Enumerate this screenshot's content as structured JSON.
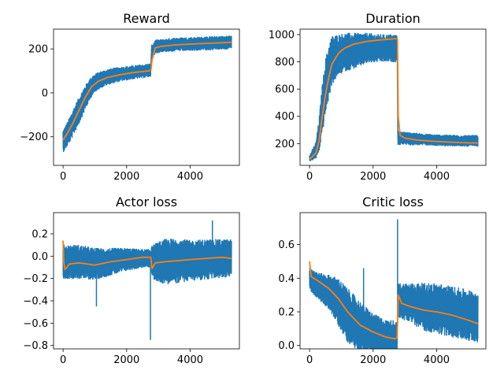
{
  "colors": {
    "raw": "#1f77b4",
    "smoothed": "#ff7f0e",
    "axes": "#000000"
  },
  "chart_data": [
    {
      "type": "line",
      "title": "Reward",
      "xlim": [
        -300,
        5550
      ],
      "ylim": [
        -330,
        290
      ],
      "xticks": [
        0,
        2000,
        4000
      ],
      "yticks": [
        -200,
        0,
        200
      ],
      "ytick_labels": [
        "−200",
        "0",
        "200"
      ],
      "series": [
        {
          "x": [
            0,
            150,
            300,
            500,
            700,
            900,
            1100,
            1400,
            1800,
            2200,
            2700,
            2760
          ],
          "y": [
            -220,
            -185,
            -140,
            -80,
            -20,
            30,
            55,
            72,
            85,
            93,
            102,
            105
          ],
          "band": [
            50,
            55,
            60,
            60,
            55,
            45,
            38,
            35,
            32,
            30,
            30,
            30
          ]
        },
        {
          "x": [
            2780,
            2900,
            3100,
            3500,
            4000,
            4500,
            5000,
            5300
          ],
          "y": [
            180,
            210,
            215,
            220,
            222,
            225,
            228,
            230
          ],
          "band": [
            35,
            30,
            28,
            30,
            30,
            30,
            30,
            30
          ]
        }
      ],
      "smooth": [
        {
          "x": [
            0,
            150,
            300,
            500,
            700,
            900,
            1100,
            1400,
            1800,
            2200,
            2700,
            2760
          ],
          "y": [
            -215,
            -180,
            -140,
            -80,
            -20,
            28,
            52,
            70,
            83,
            92,
            100,
            103
          ]
        },
        {
          "x": [
            2770,
            2800,
            2900,
            3100,
            3500,
            4000,
            4500,
            5000,
            5300
          ],
          "y": [
            105,
            150,
            205,
            212,
            218,
            222,
            225,
            228,
            230
          ]
        }
      ]
    },
    {
      "type": "line",
      "title": "Duration",
      "xlim": [
        -300,
        5550
      ],
      "ylim": [
        40,
        1040
      ],
      "xticks": [
        0,
        2000,
        4000
      ],
      "yticks": [
        200,
        400,
        600,
        800,
        1000
      ],
      "ytick_labels": [
        "200",
        "400",
        "600",
        "800",
        "1000"
      ],
      "series": [
        {
          "x": [
            0,
            200,
            300,
            400,
            500,
            600,
            700,
            900,
            1100,
            1400,
            1800,
            2200,
            2700,
            2760
          ],
          "y": [
            90,
            150,
            260,
            450,
            620,
            720,
            810,
            850,
            870,
            880,
            900,
            900,
            900,
            900
          ],
          "band": [
            20,
            60,
            120,
            180,
            200,
            200,
            180,
            150,
            140,
            130,
            110,
            100,
            100,
            100
          ]
        },
        {
          "x": [
            2780,
            2900,
            3200,
            3600,
            4000,
            4500,
            5000,
            5300
          ],
          "y": [
            240,
            240,
            235,
            230,
            225,
            222,
            220,
            220
          ],
          "band": [
            50,
            45,
            45,
            40,
            40,
            40,
            40,
            40
          ]
        }
      ],
      "smooth": [
        {
          "x": [
            0,
            200,
            300,
            400,
            500,
            600,
            700,
            900,
            1100,
            1400,
            1800,
            2200,
            2700,
            2760
          ],
          "y": [
            85,
            130,
            220,
            400,
            560,
            680,
            780,
            860,
            900,
            930,
            950,
            960,
            970,
            970
          ]
        },
        {
          "x": [
            2770,
            2790,
            2850,
            3000,
            3400,
            4000,
            4500,
            5000,
            5300
          ],
          "y": [
            960,
            400,
            260,
            240,
            225,
            215,
            210,
            205,
            205
          ]
        }
      ]
    },
    {
      "type": "line",
      "title": "Actor loss",
      "xlim": [
        -300,
        5550
      ],
      "ylim": [
        -0.83,
        0.39
      ],
      "xticks": [
        0,
        2000,
        4000
      ],
      "yticks": [
        -0.8,
        -0.6,
        -0.4,
        -0.2,
        0.0,
        0.2
      ],
      "ytick_labels": [
        "−0.8",
        "−0.6",
        "−0.4",
        "−0.2",
        "0.0",
        "0.2"
      ],
      "series": [
        {
          "x": [
            0,
            200,
            500,
            1000,
            1500,
            2000,
            2500,
            2760
          ],
          "y": [
            -0.05,
            -0.05,
            -0.05,
            -0.07,
            -0.05,
            -0.03,
            -0.02,
            -0.02
          ],
          "band": [
            0.15,
            0.15,
            0.15,
            0.14,
            0.12,
            0.1,
            0.08,
            0.08
          ]
        },
        {
          "x": [
            2780,
            3200,
            3600,
            4000,
            4500,
            5000,
            5300
          ],
          "y": [
            -0.05,
            -0.05,
            -0.04,
            -0.04,
            -0.03,
            -0.02,
            -0.02
          ],
          "band": [
            0.15,
            0.2,
            0.2,
            0.18,
            0.18,
            0.17,
            0.17
          ]
        }
      ],
      "smooth": [
        {
          "x": [
            0,
            20,
            60,
            200,
            500,
            1000,
            1500,
            2000,
            2500,
            2760,
            2800,
            2900,
            3200,
            3600,
            4000,
            4500,
            5000,
            5300
          ],
          "y": [
            0.14,
            -0.05,
            -0.12,
            -0.07,
            -0.06,
            -0.08,
            -0.05,
            -0.03,
            -0.01,
            -0.01,
            -0.11,
            -0.06,
            -0.05,
            -0.04,
            -0.03,
            -0.02,
            -0.01,
            -0.02
          ]
        }
      ],
      "spikes": [
        {
          "x": 2750,
          "y": -0.75
        },
        {
          "x": 1050,
          "y": -0.45
        },
        {
          "x": 4700,
          "y": 0.32
        }
      ]
    },
    {
      "type": "line",
      "title": "Critic loss",
      "xlim": [
        -300,
        5550
      ],
      "ylim": [
        -0.02,
        0.79
      ],
      "xticks": [
        0,
        2000,
        4000
      ],
      "yticks": [
        0.0,
        0.2,
        0.4,
        0.6
      ],
      "ytick_labels": [
        "0.0",
        "0.2",
        "0.4",
        "0.6"
      ],
      "series": [
        {
          "x": [
            0,
            300,
            600,
            900,
            1200,
            1600,
            2000,
            2400,
            2760
          ],
          "y": [
            0.4,
            0.35,
            0.32,
            0.26,
            0.18,
            0.11,
            0.07,
            0.05,
            0.05
          ],
          "band": [
            0.07,
            0.08,
            0.1,
            0.14,
            0.16,
            0.15,
            0.12,
            0.1,
            0.1
          ]
        },
        {
          "x": [
            2780,
            3200,
            3600,
            4000,
            4500,
            5000,
            5300
          ],
          "y": [
            0.27,
            0.25,
            0.23,
            0.22,
            0.2,
            0.18,
            0.17
          ],
          "band": [
            0.1,
            0.12,
            0.14,
            0.15,
            0.15,
            0.15,
            0.15
          ]
        }
      ],
      "smooth": [
        {
          "x": [
            0,
            50,
            300,
            600,
            900,
            1200,
            1600,
            2000,
            2400,
            2700,
            2760,
            2790,
            2900,
            3200,
            3600,
            4000,
            4500,
            5000,
            5300
          ],
          "y": [
            0.5,
            0.41,
            0.38,
            0.34,
            0.28,
            0.2,
            0.12,
            0.08,
            0.05,
            0.04,
            0.05,
            0.3,
            0.25,
            0.23,
            0.21,
            0.2,
            0.18,
            0.15,
            0.13
          ]
        }
      ],
      "spikes": [
        {
          "x": 2770,
          "y": 0.75
        },
        {
          "x": 1700,
          "y": 0.46
        },
        {
          "x": 0,
          "y": 0.5
        }
      ]
    }
  ]
}
